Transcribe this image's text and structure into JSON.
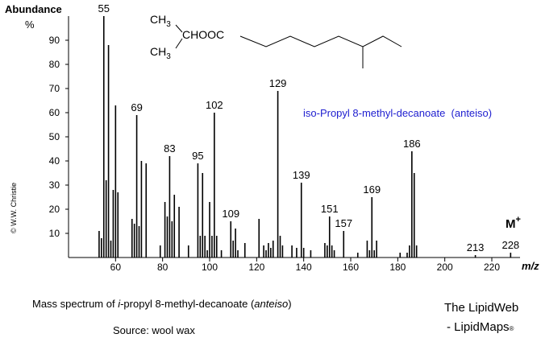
{
  "chart_data": {
    "type": "spectrum",
    "y_label": "Abundance",
    "y_unit": "%",
    "x_label": "m/z",
    "ion_label": "M",
    "ion_charge": "+",
    "title": "iso-Propyl 8-methyl-decanoate  (anteiso)",
    "title_color": "#2020d0",
    "color": "#000000",
    "copyright": "© W.W. Christie",
    "structure": {
      "methyl": "CH",
      "subscript": "3",
      "ester": "CHOOC"
    },
    "caption": [
      "Mass spectrum of ",
      "i",
      "-propyl 8-methyl-decanoate (",
      "anteiso",
      ")"
    ],
    "source": "Source: wool wax",
    "credit": [
      "The LipidWeb",
      "- LipidMaps",
      "®"
    ],
    "xlim": [
      40,
      232
    ],
    "ylim": [
      0,
      100
    ],
    "xticks": [
      60,
      80,
      100,
      120,
      140,
      160,
      180,
      200,
      220
    ],
    "yticks": [
      10,
      20,
      30,
      40,
      50,
      60,
      70,
      80,
      90
    ],
    "x": [
      53,
      54,
      55,
      56,
      57,
      58,
      59,
      60,
      61,
      67,
      68,
      69,
      70,
      71,
      73,
      79,
      81,
      82,
      83,
      84,
      85,
      87,
      91,
      95,
      96,
      97,
      98,
      99,
      100,
      101,
      102,
      103,
      105,
      109,
      110,
      111,
      112,
      115,
      121,
      123,
      124,
      125,
      126,
      127,
      129,
      130,
      131,
      135,
      137,
      139,
      140,
      143,
      149,
      150,
      151,
      152,
      153,
      157,
      163,
      167,
      168,
      169,
      170,
      171,
      181,
      184,
      185,
      186,
      187,
      188,
      213,
      228
    ],
    "values": [
      11,
      8,
      100,
      32,
      88,
      7,
      28,
      63,
      27,
      16,
      14,
      59,
      13,
      40,
      39,
      5,
      23,
      17,
      42,
      15,
      26,
      21,
      5,
      39,
      9,
      35,
      9,
      3,
      23,
      9,
      60,
      9,
      3,
      15,
      7,
      12,
      3,
      6,
      16,
      5,
      3,
      6,
      4,
      7,
      69,
      9,
      5,
      5,
      4,
      31,
      4,
      3,
      6,
      5,
      17,
      5,
      3,
      11,
      2,
      7,
      3,
      25,
      3,
      7,
      2,
      2,
      5,
      44,
      35,
      5,
      1,
      2
    ],
    "peak_labels": [
      55,
      69,
      83,
      95,
      102,
      109,
      129,
      139,
      151,
      157,
      169,
      186,
      213,
      228
    ]
  }
}
